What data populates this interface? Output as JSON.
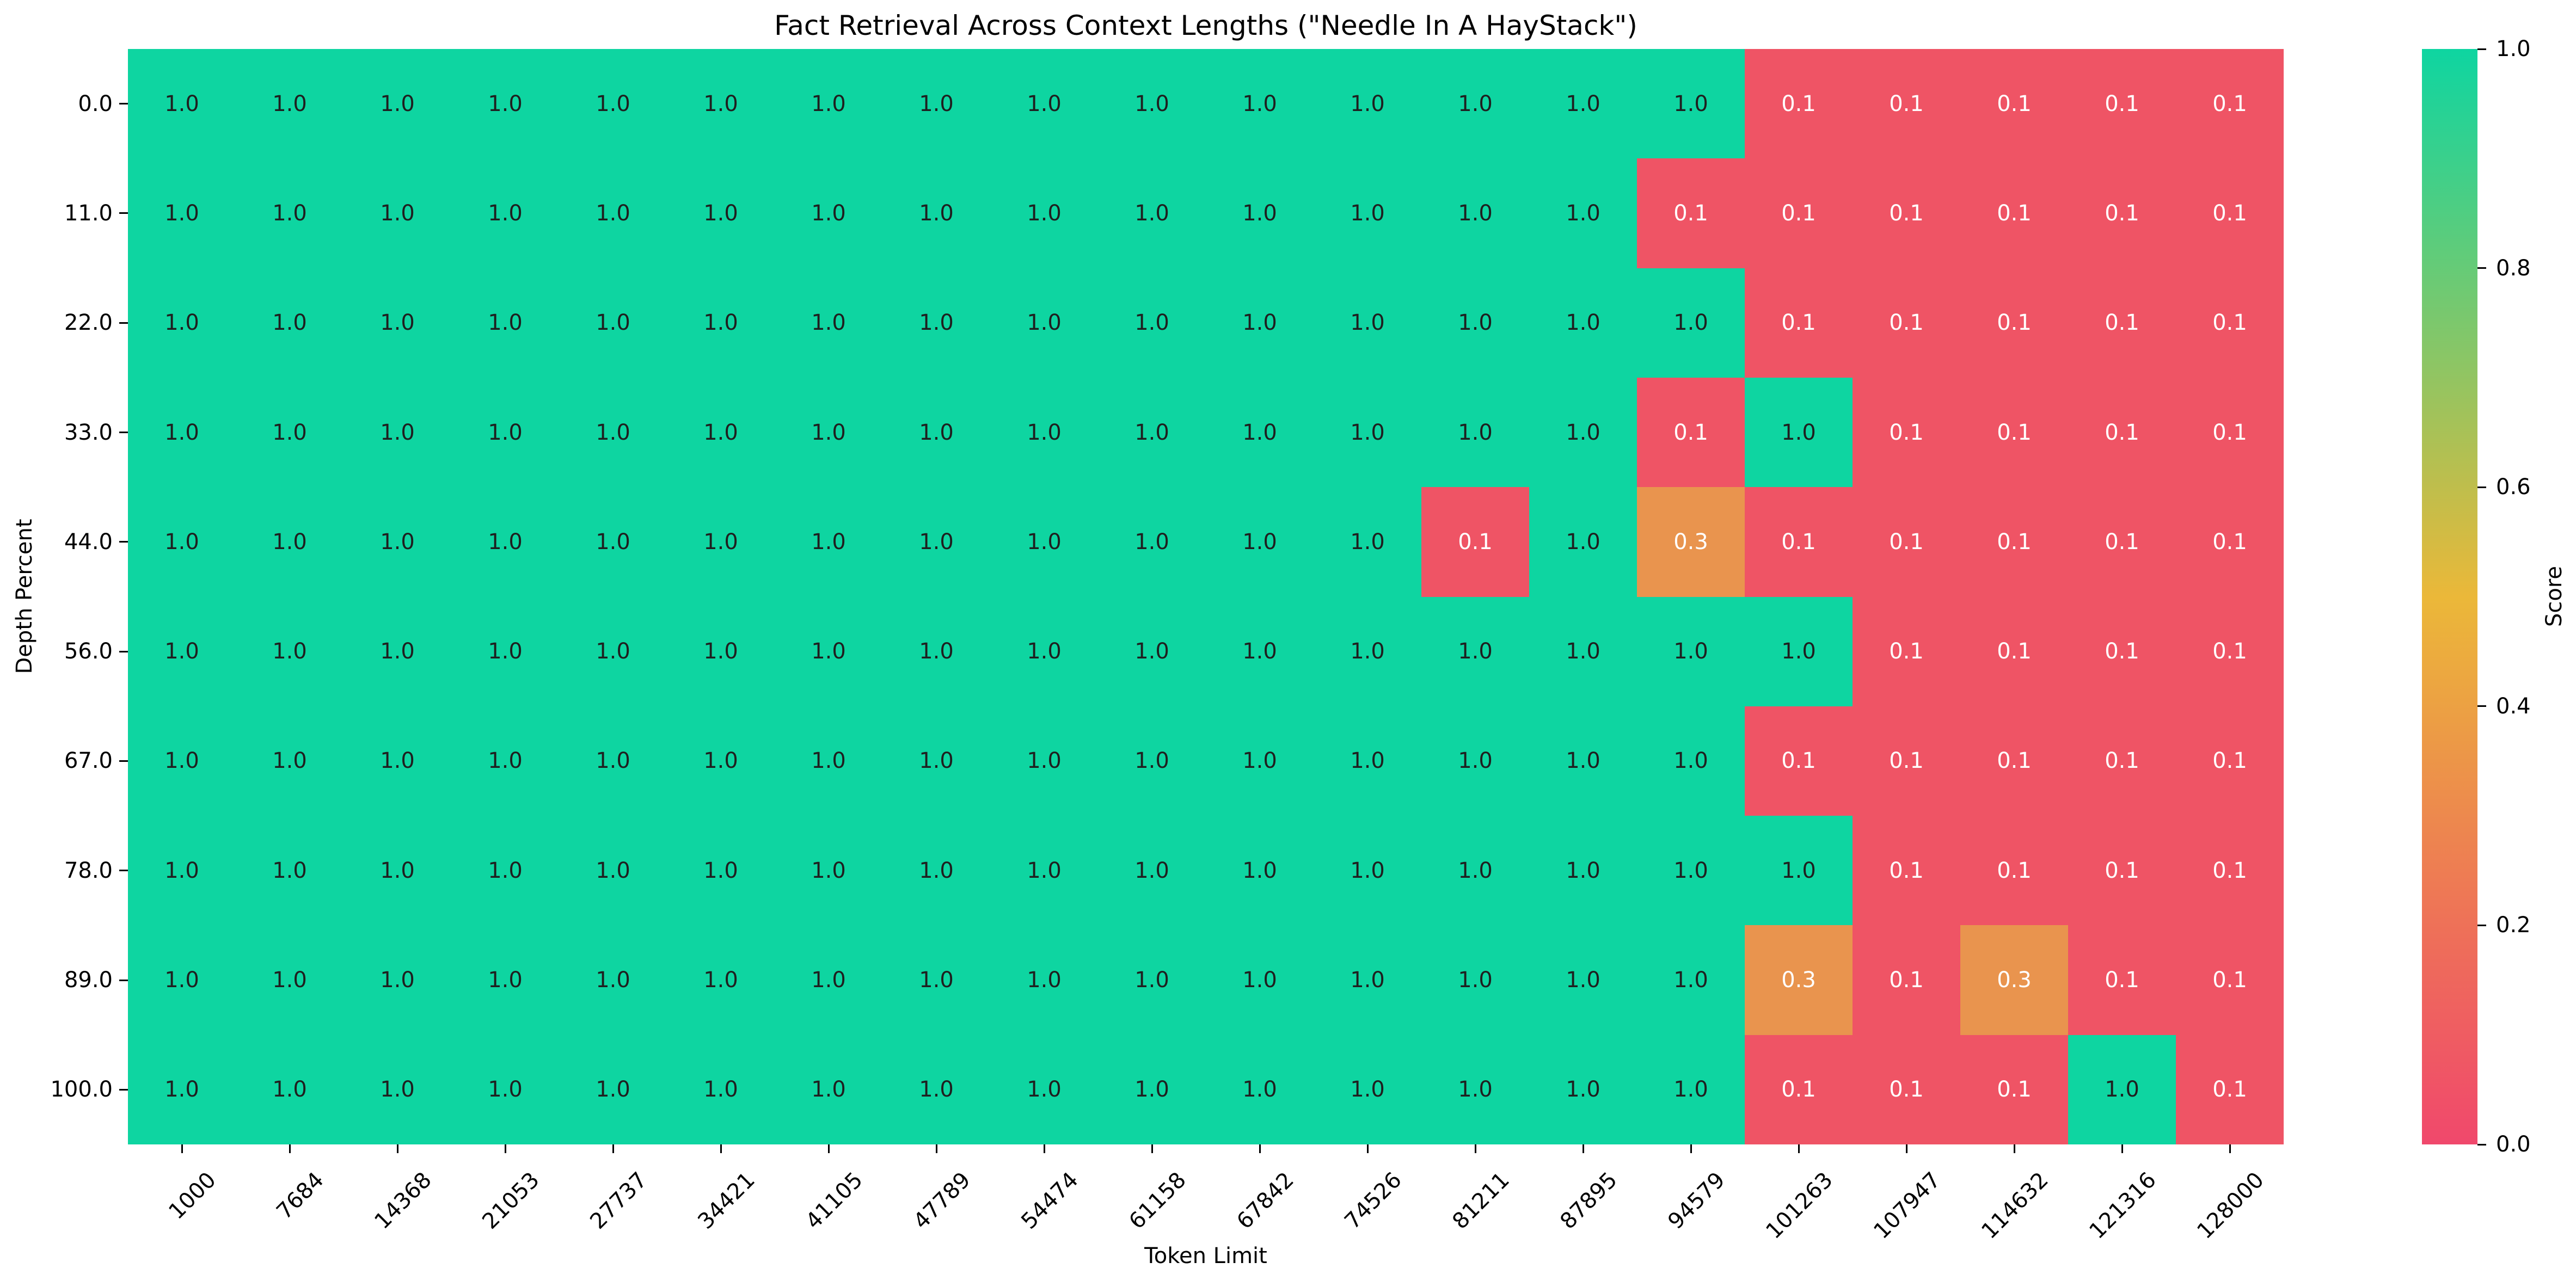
{
  "chart_data": {
    "type": "heatmap",
    "title": "Fact Retrieval Across Context Lengths (\"Needle In A HayStack\")",
    "xlabel": "Token Limit",
    "ylabel": "Depth Percent",
    "legend_position": "right-colorbar",
    "grid": false,
    "x_categories": [
      "1000",
      "7684",
      "14368",
      "21053",
      "27737",
      "34421",
      "41105",
      "47789",
      "54474",
      "61158",
      "67842",
      "74526",
      "81211",
      "87895",
      "94579",
      "101263",
      "107947",
      "114632",
      "121316",
      "128000"
    ],
    "y_categories": [
      "0.0",
      "11.0",
      "22.0",
      "33.0",
      "44.0",
      "56.0",
      "67.0",
      "78.0",
      "89.0",
      "100.0"
    ],
    "values": [
      [
        "1.0",
        "1.0",
        "1.0",
        "1.0",
        "1.0",
        "1.0",
        "1.0",
        "1.0",
        "1.0",
        "1.0",
        "1.0",
        "1.0",
        "1.0",
        "1.0",
        "1.0",
        "0.1",
        "0.1",
        "0.1",
        "0.1",
        "0.1"
      ],
      [
        "1.0",
        "1.0",
        "1.0",
        "1.0",
        "1.0",
        "1.0",
        "1.0",
        "1.0",
        "1.0",
        "1.0",
        "1.0",
        "1.0",
        "1.0",
        "1.0",
        "0.1",
        "0.1",
        "0.1",
        "0.1",
        "0.1",
        "0.1"
      ],
      [
        "1.0",
        "1.0",
        "1.0",
        "1.0",
        "1.0",
        "1.0",
        "1.0",
        "1.0",
        "1.0",
        "1.0",
        "1.0",
        "1.0",
        "1.0",
        "1.0",
        "1.0",
        "0.1",
        "0.1",
        "0.1",
        "0.1",
        "0.1"
      ],
      [
        "1.0",
        "1.0",
        "1.0",
        "1.0",
        "1.0",
        "1.0",
        "1.0",
        "1.0",
        "1.0",
        "1.0",
        "1.0",
        "1.0",
        "1.0",
        "1.0",
        "0.1",
        "1.0",
        "0.1",
        "0.1",
        "0.1",
        "0.1"
      ],
      [
        "1.0",
        "1.0",
        "1.0",
        "1.0",
        "1.0",
        "1.0",
        "1.0",
        "1.0",
        "1.0",
        "1.0",
        "1.0",
        "1.0",
        "0.1",
        "1.0",
        "0.3",
        "0.1",
        "0.1",
        "0.1",
        "0.1",
        "0.1"
      ],
      [
        "1.0",
        "1.0",
        "1.0",
        "1.0",
        "1.0",
        "1.0",
        "1.0",
        "1.0",
        "1.0",
        "1.0",
        "1.0",
        "1.0",
        "1.0",
        "1.0",
        "1.0",
        "1.0",
        "0.1",
        "0.1",
        "0.1",
        "0.1"
      ],
      [
        "1.0",
        "1.0",
        "1.0",
        "1.0",
        "1.0",
        "1.0",
        "1.0",
        "1.0",
        "1.0",
        "1.0",
        "1.0",
        "1.0",
        "1.0",
        "1.0",
        "1.0",
        "0.1",
        "0.1",
        "0.1",
        "0.1",
        "0.1"
      ],
      [
        "1.0",
        "1.0",
        "1.0",
        "1.0",
        "1.0",
        "1.0",
        "1.0",
        "1.0",
        "1.0",
        "1.0",
        "1.0",
        "1.0",
        "1.0",
        "1.0",
        "1.0",
        "1.0",
        "0.1",
        "0.1",
        "0.1",
        "0.1"
      ],
      [
        "1.0",
        "1.0",
        "1.0",
        "1.0",
        "1.0",
        "1.0",
        "1.0",
        "1.0",
        "1.0",
        "1.0",
        "1.0",
        "1.0",
        "1.0",
        "1.0",
        "1.0",
        "0.3",
        "0.1",
        "0.3",
        "0.1",
        "0.1"
      ],
      [
        "1.0",
        "1.0",
        "1.0",
        "1.0",
        "1.0",
        "1.0",
        "1.0",
        "1.0",
        "1.0",
        "1.0",
        "1.0",
        "1.0",
        "1.0",
        "1.0",
        "1.0",
        "0.1",
        "0.1",
        "0.1",
        "1.0",
        "0.1"
      ]
    ],
    "value_range": [
      0.0,
      1.0
    ],
    "cell_colors": {
      "1.0": "#0ED5A1",
      "0.3": "#E9944E",
      "0.1": "#EF5465"
    },
    "annotation_colors": {
      "1.0": "#1F1F1F",
      "0.3": "#FFFFFF",
      "0.1": "#FFFFFF"
    },
    "colorbar": {
      "label": "Score",
      "ticks": [
        "1.0",
        "0.8",
        "0.6",
        "0.4",
        "0.2",
        "0.0"
      ],
      "gradient_stops": [
        {
          "value": 0.0,
          "color": "#F0486C"
        },
        {
          "value": 0.2,
          "color": "#EE7158"
        },
        {
          "value": 0.4,
          "color": "#ECA143"
        },
        {
          "value": 0.5,
          "color": "#EBB839"
        },
        {
          "value": 0.6,
          "color": "#BFBE4C"
        },
        {
          "value": 0.8,
          "color": "#66CB77"
        },
        {
          "value": 1.0,
          "color": "#0ED5A1"
        }
      ]
    }
  }
}
